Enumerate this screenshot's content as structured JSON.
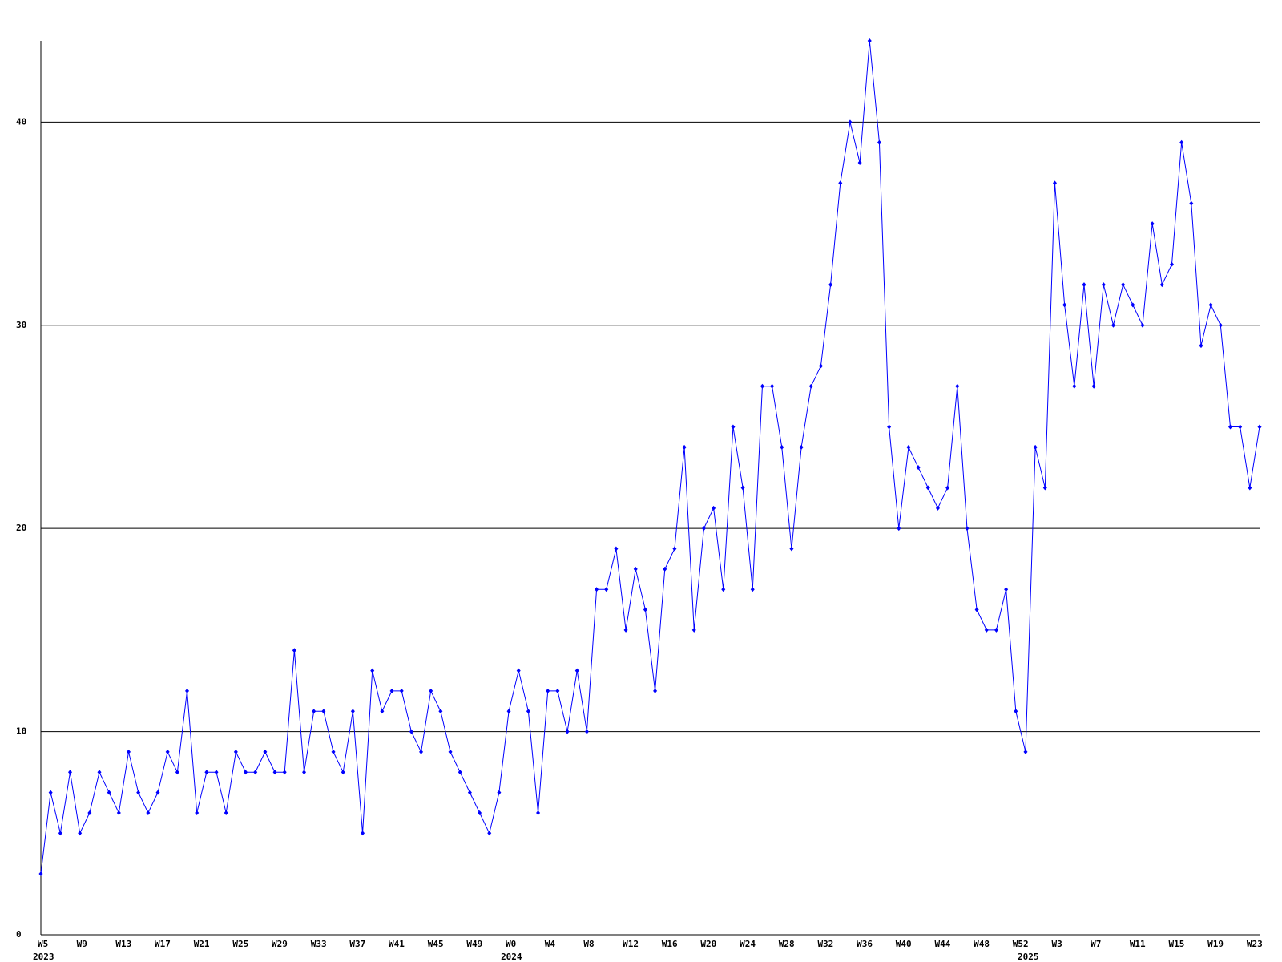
{
  "chart_data": {
    "type": "line",
    "categories": [
      "W5",
      null,
      null,
      null,
      "W9",
      null,
      null,
      null,
      "W13",
      null,
      null,
      null,
      "W17",
      null,
      null,
      null,
      "W21",
      null,
      null,
      null,
      "W25",
      null,
      null,
      null,
      "W29",
      null,
      null,
      null,
      "W33",
      null,
      null,
      null,
      "W37",
      null,
      null,
      null,
      "W41",
      null,
      null,
      null,
      "W45",
      null,
      null,
      null,
      "W49",
      null,
      null,
      null,
      "W0",
      null,
      null,
      null,
      "W4",
      null,
      null,
      null,
      "W8",
      null,
      null,
      null,
      "W12",
      null,
      null,
      null,
      "W16",
      null,
      null,
      null,
      "W20",
      null,
      null,
      null,
      "W24",
      null,
      null,
      null,
      "W28",
      null,
      null,
      null,
      "W32",
      null,
      null,
      null,
      "W36",
      null,
      null,
      null,
      "W40",
      null,
      null,
      null,
      "W44",
      null,
      null,
      null,
      "W48",
      null,
      null,
      null,
      "W52",
      null,
      null,
      null,
      "W3",
      null,
      null,
      null,
      "W7",
      null,
      null,
      null,
      "W11",
      null,
      null,
      null,
      "W15",
      null,
      null,
      null,
      "W19",
      null,
      null,
      null,
      "W23",
      null
    ],
    "year_categories": [
      "2023",
      null,
      null,
      null,
      null,
      null,
      null,
      null,
      null,
      null,
      null,
      null,
      null,
      null,
      null,
      null,
      null,
      null,
      null,
      null,
      null,
      null,
      null,
      null,
      null,
      null,
      null,
      null,
      null,
      null,
      null,
      null,
      null,
      null,
      null,
      null,
      null,
      null,
      null,
      null,
      null,
      null,
      null,
      null,
      null,
      null,
      null,
      null,
      "2024",
      null,
      null,
      null,
      null,
      null,
      null,
      null,
      null,
      null,
      null,
      null,
      null,
      null,
      null,
      null,
      null,
      null,
      null,
      null,
      null,
      null,
      null,
      null,
      null,
      null,
      null,
      null,
      null,
      null,
      null,
      null,
      null,
      null,
      null,
      null,
      null,
      null,
      null,
      null,
      null,
      null,
      null,
      null,
      null,
      null,
      null,
      null,
      null,
      null,
      null,
      null,
      null,
      "2025",
      null,
      null,
      null,
      null,
      null,
      null,
      null,
      null,
      null,
      null,
      null,
      null,
      null,
      null,
      null,
      null,
      null,
      null,
      null,
      null,
      null,
      null,
      null,
      null
    ],
    "values": [
      3,
      7,
      5,
      8,
      5,
      6,
      8,
      7,
      6,
      9,
      7,
      6,
      7,
      9,
      8,
      12,
      6,
      8,
      8,
      6,
      9,
      8,
      8,
      9,
      8,
      8,
      14,
      8,
      11,
      11,
      9,
      8,
      11,
      5,
      13,
      11,
      12,
      12,
      10,
      9,
      12,
      11,
      9,
      8,
      7,
      6,
      5,
      7,
      11,
      13,
      11,
      6,
      12,
      12,
      10,
      13,
      10,
      17,
      17,
      19,
      15,
      18,
      16,
      12,
      18,
      19,
      24,
      15,
      20,
      21,
      17,
      25,
      22,
      17,
      27,
      27,
      24,
      19,
      24,
      27,
      28,
      32,
      37,
      40,
      38,
      44,
      39,
      25,
      20,
      24,
      23,
      22,
      21,
      22,
      27,
      20,
      16,
      15,
      15,
      17,
      11,
      9,
      24,
      22,
      37,
      31,
      27,
      32,
      27,
      32,
      30,
      32,
      31,
      30,
      35,
      32,
      33,
      39,
      36,
      29,
      31,
      30,
      25,
      25,
      22,
      25
    ],
    "color": "#0000ff",
    "ylim": [
      0,
      44
    ],
    "yticks": [
      0,
      10,
      20,
      30,
      40
    ],
    "grid": true
  }
}
